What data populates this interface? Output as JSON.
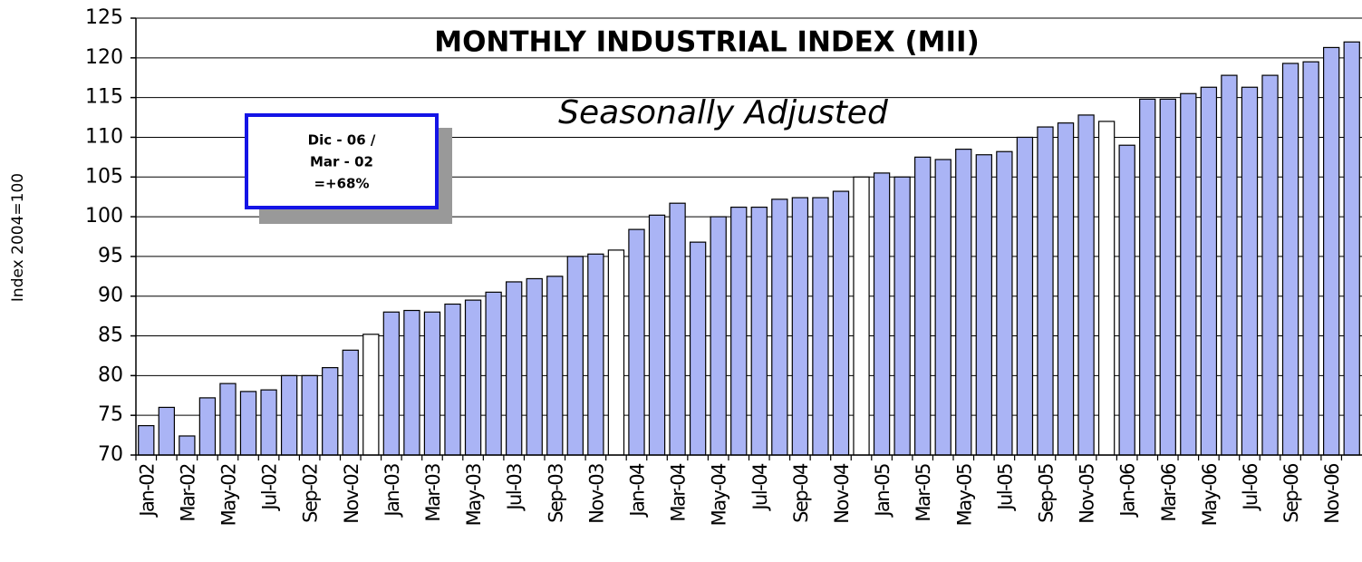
{
  "chart_data": {
    "type": "bar",
    "title": "MONTHLY INDUSTRIAL INDEX (MII)",
    "subtitle": "Seasonally Adjusted",
    "y_label": "Index 2004=100",
    "annotation": [
      "Dic - 06 /",
      "Mar - 02",
      "=+68%"
    ],
    "categories": [
      "Jan-02",
      null,
      "Mar-02",
      null,
      "May-02",
      null,
      "Jul-02",
      null,
      "Sep-02",
      null,
      "Nov-02",
      null,
      "Jan-03",
      null,
      "Mar-03",
      null,
      "May-03",
      null,
      "Jul-03",
      null,
      "Sep-03",
      null,
      "Nov-03",
      null,
      "Jan-04",
      null,
      "Mar-04",
      null,
      "May-04",
      null,
      "Jul-04",
      null,
      "Sep-04",
      null,
      "Nov-04",
      null,
      "Jan-05",
      null,
      "Mar-05",
      null,
      "May-05",
      null,
      "Jul-05",
      null,
      "Sep-05",
      null,
      "Nov-05",
      null,
      "Jan-06",
      null,
      "Mar-06",
      null,
      "May-06",
      null,
      "Jul-06",
      null,
      "Sep-06",
      null,
      "Nov-06",
      null
    ],
    "values": [
      73.7,
      76,
      72.4,
      77.2,
      79,
      78,
      78.2,
      80,
      80,
      81,
      83.2,
      85.2,
      88,
      88.2,
      88,
      89,
      89.5,
      90.5,
      91.8,
      92.2,
      92.5,
      95,
      95.3,
      95.8,
      98.4,
      100.2,
      101.7,
      96.8,
      100,
      101.2,
      101.2,
      102.2,
      102.4,
      102.4,
      103.2,
      105,
      105.5,
      105,
      107.5,
      107.2,
      108.5,
      107.8,
      108.2,
      110,
      111.3,
      111.8,
      112.8,
      112,
      109,
      114.8,
      114.8,
      115.5,
      116.3,
      117.8,
      116.3,
      117.8,
      119.3,
      119.5,
      121.3,
      122
    ],
    "colors": [
      "#aab4f5",
      "#aab4f5",
      "#aab4f5",
      "#aab4f5",
      "#aab4f5",
      "#aab4f5",
      "#aab4f5",
      "#aab4f5",
      "#aab4f5",
      "#aab4f5",
      "#aab4f5",
      "#ffffff",
      "#aab4f5",
      "#aab4f5",
      "#aab4f5",
      "#aab4f5",
      "#aab4f5",
      "#aab4f5",
      "#aab4f5",
      "#aab4f5",
      "#aab4f5",
      "#aab4f5",
      "#aab4f5",
      "#ffffff",
      "#aab4f5",
      "#aab4f5",
      "#aab4f5",
      "#aab4f5",
      "#aab4f5",
      "#aab4f5",
      "#aab4f5",
      "#aab4f5",
      "#aab4f5",
      "#aab4f5",
      "#aab4f5",
      "#ffffff",
      "#aab4f5",
      "#aab4f5",
      "#aab4f5",
      "#aab4f5",
      "#aab4f5",
      "#aab4f5",
      "#aab4f5",
      "#aab4f5",
      "#aab4f5",
      "#aab4f5",
      "#aab4f5",
      "#ffffff",
      "#aab4f5",
      "#aab4f5",
      "#aab4f5",
      "#aab4f5",
      "#aab4f5",
      "#aab4f5",
      "#aab4f5",
      "#aab4f5",
      "#aab4f5",
      "#aab4f5",
      "#aab4f5",
      "#aab4f5"
    ],
    "ylim": [
      70,
      125
    ],
    "yticks": [
      70,
      75,
      80,
      85,
      90,
      95,
      100,
      105,
      110,
      115,
      120,
      125
    ],
    "grid": true
  }
}
